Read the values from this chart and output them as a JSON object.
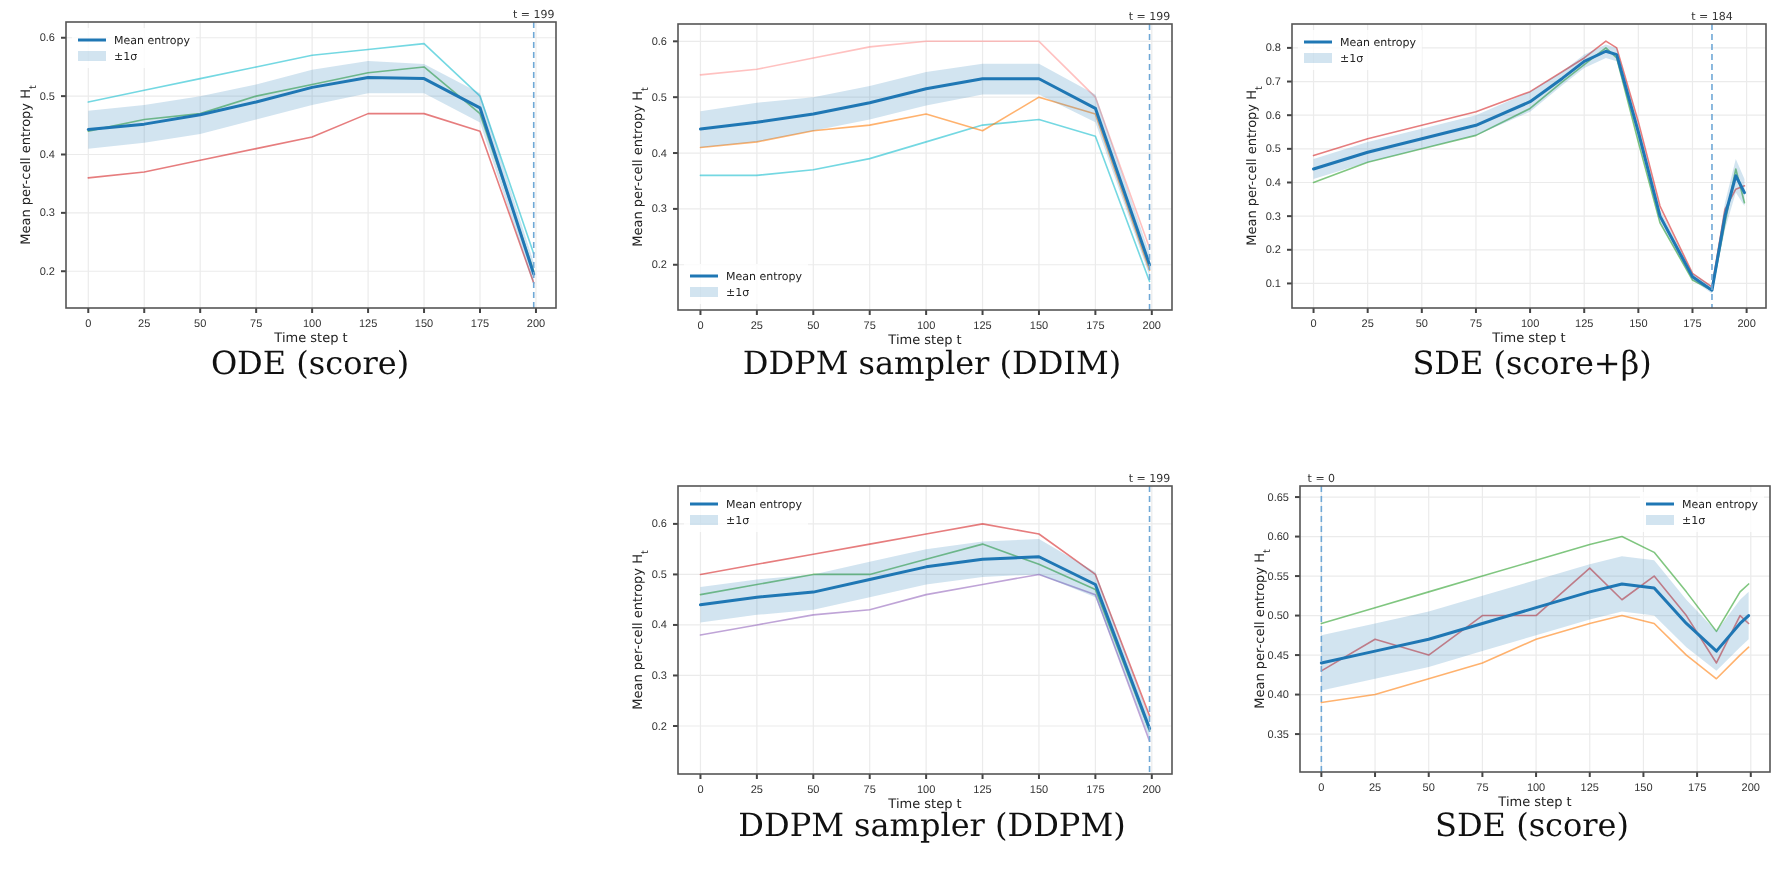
{
  "chart_data": [
    {
      "type": "line",
      "title": "ODE (score)",
      "xlabel": "Time step t",
      "ylabel": "Mean per-cell entropy H$_{t}$",
      "xlim": [
        -9.95,
        208.95
      ],
      "ylim": [
        0.137,
        0.627
      ],
      "xticks": [
        0,
        25,
        50,
        75,
        100,
        125,
        150,
        175,
        200
      ],
      "yticks": [
        0.2,
        0.3,
        0.4,
        0.5,
        0.6
      ],
      "grid": true,
      "legend": "top left",
      "annotations": [
        "±1σ"
      ],
      "ref_lines": [
        {
          "axis": "x",
          "value": 199,
          "label": "t = 199",
          "color": "#6fa8d6",
          "line_style": "dashed"
        }
      ],
      "x": [
        0,
        25,
        50,
        75,
        100,
        125,
        150,
        175,
        199
      ],
      "series": [
        {
          "color": "#d62728",
          "values": [
            0.36,
            0.37,
            0.39,
            0.41,
            0.43,
            0.47,
            0.47,
            0.44,
            0.18
          ]
        },
        {
          "color": "#17becf",
          "values": [
            0.49,
            0.51,
            0.53,
            0.55,
            0.57,
            0.58,
            0.59,
            0.5,
            0.23
          ]
        },
        {
          "color": "#2ca02c",
          "values": [
            0.44,
            0.46,
            0.47,
            0.5,
            0.52,
            0.54,
            0.55,
            0.47,
            0.2
          ]
        },
        {
          "name": "Mean entropy",
          "color": "#1f77b4",
          "values": [
            0.443,
            0.452,
            0.468,
            0.49,
            0.515,
            0.532,
            0.53,
            0.48,
            0.195
          ],
          "lower": [
            0.41,
            0.42,
            0.435,
            0.46,
            0.485,
            0.505,
            0.505,
            0.455,
            0.175
          ],
          "upper": [
            0.475,
            0.485,
            0.5,
            0.52,
            0.545,
            0.56,
            0.555,
            0.505,
            0.215
          ]
        }
      ]
    },
    {
      "type": "line",
      "title": "DDPM sampler (DDIM)",
      "xlabel": "Time step t",
      "ylabel": "Mean per-cell entropy H$_{t}$",
      "xlim": [
        -9.95,
        208.95
      ],
      "ylim": [
        0.119,
        0.631
      ],
      "xticks": [
        0,
        25,
        50,
        75,
        100,
        125,
        150,
        175,
        200
      ],
      "yticks": [
        0.2,
        0.3,
        0.4,
        0.5,
        0.6
      ],
      "grid": true,
      "legend": "bottom left",
      "annotations": [
        "±1σ"
      ],
      "ref_lines": [
        {
          "axis": "x",
          "value": 199,
          "label": "t = 199",
          "color": "#6fa8d6",
          "line_style": "dashed"
        }
      ],
      "x": [
        0,
        25,
        50,
        75,
        100,
        125,
        150,
        175,
        199
      ],
      "series": [
        {
          "color": "#17becf",
          "values": [
            0.36,
            0.36,
            0.37,
            0.39,
            0.42,
            0.45,
            0.46,
            0.43,
            0.17
          ]
        },
        {
          "color": "#ff9896",
          "values": [
            0.54,
            0.55,
            0.57,
            0.59,
            0.6,
            0.6,
            0.6,
            0.5,
            0.23
          ]
        },
        {
          "color": "#ff7f0e",
          "values": [
            0.41,
            0.42,
            0.44,
            0.45,
            0.47,
            0.44,
            0.5,
            0.47,
            0.19
          ]
        },
        {
          "name": "Mean entropy",
          "color": "#1f77b4",
          "values": [
            0.443,
            0.455,
            0.47,
            0.49,
            0.515,
            0.533,
            0.533,
            0.48,
            0.2
          ],
          "lower": [
            0.41,
            0.42,
            0.44,
            0.46,
            0.485,
            0.505,
            0.505,
            0.455,
            0.18
          ],
          "upper": [
            0.475,
            0.49,
            0.5,
            0.52,
            0.545,
            0.56,
            0.56,
            0.505,
            0.22
          ]
        }
      ]
    },
    {
      "type": "line",
      "title": "SDE (score+β)",
      "xlabel": "Time step t",
      "ylabel": "Mean per-cell entropy H$_{t}$",
      "xlim": [
        -9.95,
        208.95
      ],
      "ylim": [
        0.027,
        0.871
      ],
      "xticks": [
        0,
        25,
        50,
        75,
        100,
        125,
        150,
        175,
        200
      ],
      "yticks": [
        0.1,
        0.2,
        0.3,
        0.4,
        0.5,
        0.6,
        0.7,
        0.8
      ],
      "grid": true,
      "legend": "top left",
      "annotations": [
        "±1σ"
      ],
      "ref_lines": [
        {
          "axis": "x",
          "value": 184,
          "label": "t = 184",
          "color": "#6fa8d6",
          "line_style": "dashed"
        }
      ],
      "x": [
        0,
        25,
        50,
        75,
        100,
        115,
        125,
        135,
        140,
        150,
        160,
        175,
        184,
        190,
        195,
        199
      ],
      "series": [
        {
          "color": "#2ca02c",
          "values": [
            0.4,
            0.46,
            0.5,
            0.54,
            0.62,
            0.7,
            0.75,
            0.8,
            0.77,
            0.52,
            0.28,
            0.11,
            0.08,
            0.28,
            0.44,
            0.34
          ]
        },
        {
          "color": "#d62728",
          "values": [
            0.48,
            0.53,
            0.57,
            0.61,
            0.67,
            0.73,
            0.77,
            0.82,
            0.8,
            0.58,
            0.33,
            0.13,
            0.09,
            0.32,
            0.38,
            0.39
          ]
        },
        {
          "name": "Mean entropy",
          "color": "#1f77b4",
          "values": [
            0.44,
            0.49,
            0.53,
            0.57,
            0.64,
            0.71,
            0.76,
            0.79,
            0.78,
            0.55,
            0.3,
            0.12,
            0.08,
            0.3,
            0.42,
            0.37
          ],
          "lower": [
            0.41,
            0.46,
            0.5,
            0.54,
            0.61,
            0.69,
            0.74,
            0.77,
            0.76,
            0.53,
            0.28,
            0.11,
            0.07,
            0.26,
            0.37,
            0.33
          ],
          "upper": [
            0.47,
            0.52,
            0.56,
            0.6,
            0.67,
            0.73,
            0.78,
            0.81,
            0.8,
            0.57,
            0.32,
            0.13,
            0.09,
            0.34,
            0.47,
            0.41
          ]
        }
      ]
    },
    {
      "type": "line",
      "title": "DDPM sampler (DDPM)",
      "xlabel": "Time step t",
      "ylabel": "Mean per-cell entropy H$_{t}$",
      "xlim": [
        -9.95,
        208.95
      ],
      "ylim": [
        0.105,
        0.675
      ],
      "xticks": [
        0,
        25,
        50,
        75,
        100,
        125,
        150,
        175,
        200
      ],
      "yticks": [
        0.2,
        0.3,
        0.4,
        0.5,
        0.6
      ],
      "grid": true,
      "legend": "top left",
      "annotations": [
        "±1σ"
      ],
      "ref_lines": [
        {
          "axis": "x",
          "value": 199,
          "label": "t = 199",
          "color": "#6fa8d6",
          "line_style": "dashed"
        }
      ],
      "x": [
        0,
        25,
        50,
        75,
        100,
        125,
        150,
        175,
        199
      ],
      "series": [
        {
          "color": "#d62728",
          "values": [
            0.5,
            0.52,
            0.54,
            0.56,
            0.58,
            0.6,
            0.58,
            0.5,
            0.22
          ]
        },
        {
          "color": "#9467bd",
          "values": [
            0.38,
            0.4,
            0.42,
            0.43,
            0.46,
            0.48,
            0.5,
            0.46,
            0.17
          ]
        },
        {
          "color": "#2ca02c",
          "values": [
            0.46,
            0.48,
            0.5,
            0.5,
            0.53,
            0.56,
            0.52,
            0.47,
            0.19
          ]
        },
        {
          "name": "Mean entropy",
          "color": "#1f77b4",
          "values": [
            0.44,
            0.455,
            0.465,
            0.49,
            0.515,
            0.53,
            0.535,
            0.48,
            0.195
          ],
          "lower": [
            0.405,
            0.42,
            0.43,
            0.455,
            0.48,
            0.495,
            0.5,
            0.455,
            0.175
          ],
          "upper": [
            0.475,
            0.49,
            0.5,
            0.525,
            0.55,
            0.565,
            0.57,
            0.505,
            0.215
          ]
        }
      ]
    },
    {
      "type": "line",
      "title": "SDE (score)",
      "xlabel": "Time step t",
      "ylabel": "Mean per-cell entropy H$_{t}$",
      "xlim": [
        -9.95,
        208.95
      ],
      "ylim": [
        0.302,
        0.664
      ],
      "xticks": [
        0,
        25,
        50,
        75,
        100,
        125,
        150,
        175,
        200
      ],
      "yticks": [
        0.35,
        {
          "value": 0.4,
          "label": "0.40"
        },
        0.45,
        {
          "value": 0.5,
          "label": "0.50"
        },
        0.55,
        {
          "value": 0.6,
          "label": "0.60"
        },
        0.65
      ],
      "grid": true,
      "legend": "top right",
      "annotations": [
        "±1σ"
      ],
      "ref_lines": [
        {
          "axis": "x",
          "value": 0,
          "label": "t = 0",
          "color": "#6fa8d6",
          "line_style": "dashed"
        }
      ],
      "x": [
        0,
        25,
        50,
        75,
        100,
        125,
        140,
        155,
        170,
        184,
        195,
        199
      ],
      "series": [
        {
          "color": "#ff7f0e",
          "values": [
            0.39,
            0.4,
            0.42,
            0.44,
            0.47,
            0.49,
            0.5,
            0.49,
            0.45,
            0.42,
            0.45,
            0.46
          ]
        },
        {
          "color": "#2ca02c",
          "values": [
            0.49,
            0.51,
            0.53,
            0.55,
            0.57,
            0.59,
            0.6,
            0.58,
            0.53,
            0.48,
            0.53,
            0.54
          ]
        },
        {
          "color": "#d62728",
          "values": [
            0.43,
            0.47,
            0.45,
            0.5,
            0.5,
            0.56,
            0.52,
            0.55,
            0.5,
            0.44,
            0.5,
            0.49
          ]
        },
        {
          "name": "Mean entropy",
          "color": "#1f77b4",
          "values": [
            0.44,
            0.455,
            0.47,
            0.49,
            0.51,
            0.53,
            0.54,
            0.535,
            0.49,
            0.455,
            0.49,
            0.5
          ],
          "lower": [
            0.405,
            0.42,
            0.435,
            0.455,
            0.475,
            0.495,
            0.505,
            0.5,
            0.46,
            0.43,
            0.46,
            0.47
          ],
          "upper": [
            0.475,
            0.49,
            0.505,
            0.525,
            0.545,
            0.565,
            0.575,
            0.57,
            0.52,
            0.48,
            0.52,
            0.53
          ]
        }
      ]
    }
  ]
}
